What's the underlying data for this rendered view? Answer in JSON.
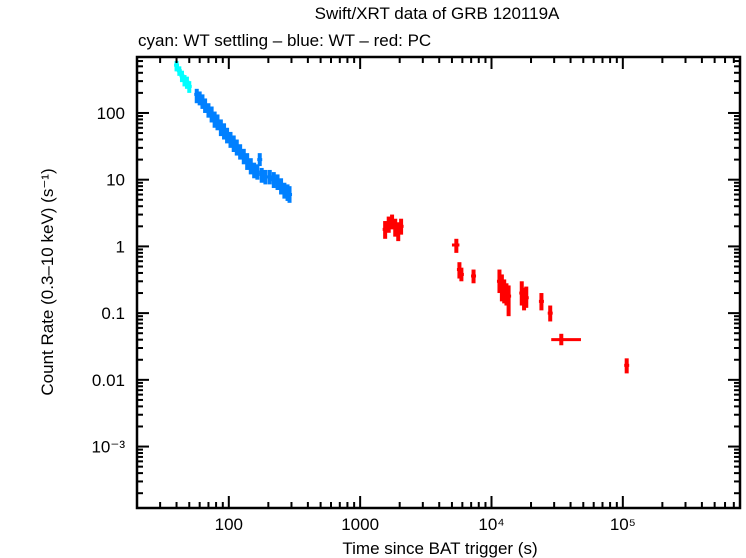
{
  "chart_data": {
    "type": "scatter",
    "title": "Swift/XRT data of GRB 120119A",
    "subtitle": "cyan: WT settling – blue: WT – red: PC",
    "xlabel": "Time since BAT trigger (s)",
    "ylabel": "Count Rate (0.3–10 keV) (s⁻¹)",
    "xscale": "log",
    "yscale": "log",
    "xlim": [
      20,
      780000
    ],
    "ylim": [
      0.00012,
      690
    ],
    "grid": false,
    "x_ticks": [
      {
        "value": 100,
        "label": "100"
      },
      {
        "value": 1000,
        "label": "1000"
      },
      {
        "value": 10000,
        "label": "10⁴"
      },
      {
        "value": 100000,
        "label": "10⁵"
      }
    ],
    "y_ticks": [
      {
        "value": 100,
        "label": "100"
      },
      {
        "value": 10,
        "label": "10"
      },
      {
        "value": 1,
        "label": "1"
      },
      {
        "value": 0.1,
        "label": "0.1"
      },
      {
        "value": 0.01,
        "label": "0.01"
      },
      {
        "value": 0.001,
        "label": "10⁻³"
      }
    ],
    "series": [
      {
        "name": "WT settling",
        "color": "#00ffff",
        "points": [
          {
            "x": 40,
            "y": 520,
            "ylo": 420,
            "yhi": 600
          },
          {
            "x": 42,
            "y": 430,
            "ylo": 360,
            "yhi": 500
          },
          {
            "x": 44,
            "y": 360,
            "ylo": 290,
            "yhi": 430
          },
          {
            "x": 46,
            "y": 310,
            "ylo": 250,
            "yhi": 370
          },
          {
            "x": 48,
            "y": 290,
            "ylo": 230,
            "yhi": 350
          },
          {
            "x": 50,
            "y": 250,
            "ylo": 200,
            "yhi": 300
          }
        ]
      },
      {
        "name": "WT",
        "color": "#0080ff",
        "points": [
          {
            "x": 57,
            "y": 190,
            "ylo": 140,
            "yhi": 230
          },
          {
            "x": 60,
            "y": 170,
            "ylo": 130,
            "yhi": 210
          },
          {
            "x": 63,
            "y": 150,
            "ylo": 115,
            "yhi": 190
          },
          {
            "x": 66,
            "y": 130,
            "ylo": 100,
            "yhi": 165
          },
          {
            "x": 70,
            "y": 110,
            "ylo": 85,
            "yhi": 140
          },
          {
            "x": 74,
            "y": 95,
            "ylo": 72,
            "yhi": 125
          },
          {
            "x": 78,
            "y": 80,
            "ylo": 60,
            "yhi": 105
          },
          {
            "x": 82,
            "y": 72,
            "ylo": 55,
            "yhi": 95
          },
          {
            "x": 87,
            "y": 60,
            "ylo": 45,
            "yhi": 80
          },
          {
            "x": 92,
            "y": 52,
            "ylo": 40,
            "yhi": 70
          },
          {
            "x": 97,
            "y": 46,
            "ylo": 35,
            "yhi": 60
          },
          {
            "x": 103,
            "y": 40,
            "ylo": 30,
            "yhi": 52
          },
          {
            "x": 109,
            "y": 35,
            "ylo": 26,
            "yhi": 46
          },
          {
            "x": 115,
            "y": 30,
            "ylo": 23,
            "yhi": 40
          },
          {
            "x": 122,
            "y": 26,
            "ylo": 20,
            "yhi": 34
          },
          {
            "x": 130,
            "y": 22,
            "ylo": 17,
            "yhi": 29
          },
          {
            "x": 138,
            "y": 19,
            "ylo": 14,
            "yhi": 25
          },
          {
            "x": 147,
            "y": 16,
            "ylo": 12,
            "yhi": 21
          },
          {
            "x": 156,
            "y": 14,
            "ylo": 10.5,
            "yhi": 18
          },
          {
            "x": 165,
            "y": 13,
            "ylo": 10,
            "yhi": 17
          },
          {
            "x": 172,
            "y": 20,
            "ylo": 16,
            "yhi": 25
          },
          {
            "x": 178,
            "y": 12,
            "ylo": 9,
            "yhi": 15
          },
          {
            "x": 190,
            "y": 11,
            "ylo": 8.5,
            "yhi": 14
          },
          {
            "x": 205,
            "y": 11,
            "ylo": 8.5,
            "yhi": 14
          },
          {
            "x": 220,
            "y": 10,
            "ylo": 7.5,
            "yhi": 13
          },
          {
            "x": 235,
            "y": 9,
            "ylo": 7,
            "yhi": 12
          },
          {
            "x": 250,
            "y": 8,
            "ylo": 6,
            "yhi": 10.5
          },
          {
            "x": 265,
            "y": 7,
            "ylo": 5.2,
            "yhi": 9
          },
          {
            "x": 280,
            "y": 6.5,
            "ylo": 4.8,
            "yhi": 8.5
          },
          {
            "x": 290,
            "y": 6,
            "ylo": 4.5,
            "yhi": 8
          }
        ]
      },
      {
        "name": "PC",
        "color": "#ff0000",
        "points": [
          {
            "x": 1550,
            "y": 1.8,
            "ylo": 1.3,
            "yhi": 2.4
          },
          {
            "x": 1650,
            "y": 2.2,
            "ylo": 1.6,
            "yhi": 2.8
          },
          {
            "x": 1750,
            "y": 2.4,
            "ylo": 1.8,
            "yhi": 3.0
          },
          {
            "x": 1850,
            "y": 2.0,
            "ylo": 1.4,
            "yhi": 2.6
          },
          {
            "x": 1950,
            "y": 1.7,
            "ylo": 1.2,
            "yhi": 2.3
          },
          {
            "x": 2050,
            "y": 2.0,
            "ylo": 1.5,
            "yhi": 2.6
          },
          {
            "x": 5400,
            "y": 1.05,
            "ylo": 0.8,
            "yhi": 1.3,
            "xlo": 5000,
            "xhi": 5700
          },
          {
            "x": 5700,
            "y": 0.45,
            "ylo": 0.33,
            "yhi": 0.58
          },
          {
            "x": 5900,
            "y": 0.38,
            "ylo": 0.3,
            "yhi": 0.48
          },
          {
            "x": 7300,
            "y": 0.36,
            "ylo": 0.28,
            "yhi": 0.45
          },
          {
            "x": 11500,
            "y": 0.3,
            "ylo": 0.2,
            "yhi": 0.45
          },
          {
            "x": 12000,
            "y": 0.24,
            "ylo": 0.15,
            "yhi": 0.38
          },
          {
            "x": 12500,
            "y": 0.22,
            "ylo": 0.14,
            "yhi": 0.32
          },
          {
            "x": 13000,
            "y": 0.2,
            "ylo": 0.13,
            "yhi": 0.28
          },
          {
            "x": 13500,
            "y": 0.18,
            "ylo": 0.09,
            "yhi": 0.26
          },
          {
            "x": 17000,
            "y": 0.2,
            "ylo": 0.13,
            "yhi": 0.3
          },
          {
            "x": 17700,
            "y": 0.16,
            "ylo": 0.11,
            "yhi": 0.24
          },
          {
            "x": 18400,
            "y": 0.17,
            "ylo": 0.12,
            "yhi": 0.25
          },
          {
            "x": 24000,
            "y": 0.15,
            "ylo": 0.11,
            "yhi": 0.2
          },
          {
            "x": 28000,
            "y": 0.1,
            "ylo": 0.075,
            "yhi": 0.13
          },
          {
            "x": 34000,
            "y": 0.04,
            "ylo": 0.033,
            "yhi": 0.049,
            "xlo": 28500,
            "xhi": 48000
          },
          {
            "x": 107000,
            "y": 0.0165,
            "ylo": 0.0125,
            "yhi": 0.021
          }
        ]
      }
    ]
  }
}
